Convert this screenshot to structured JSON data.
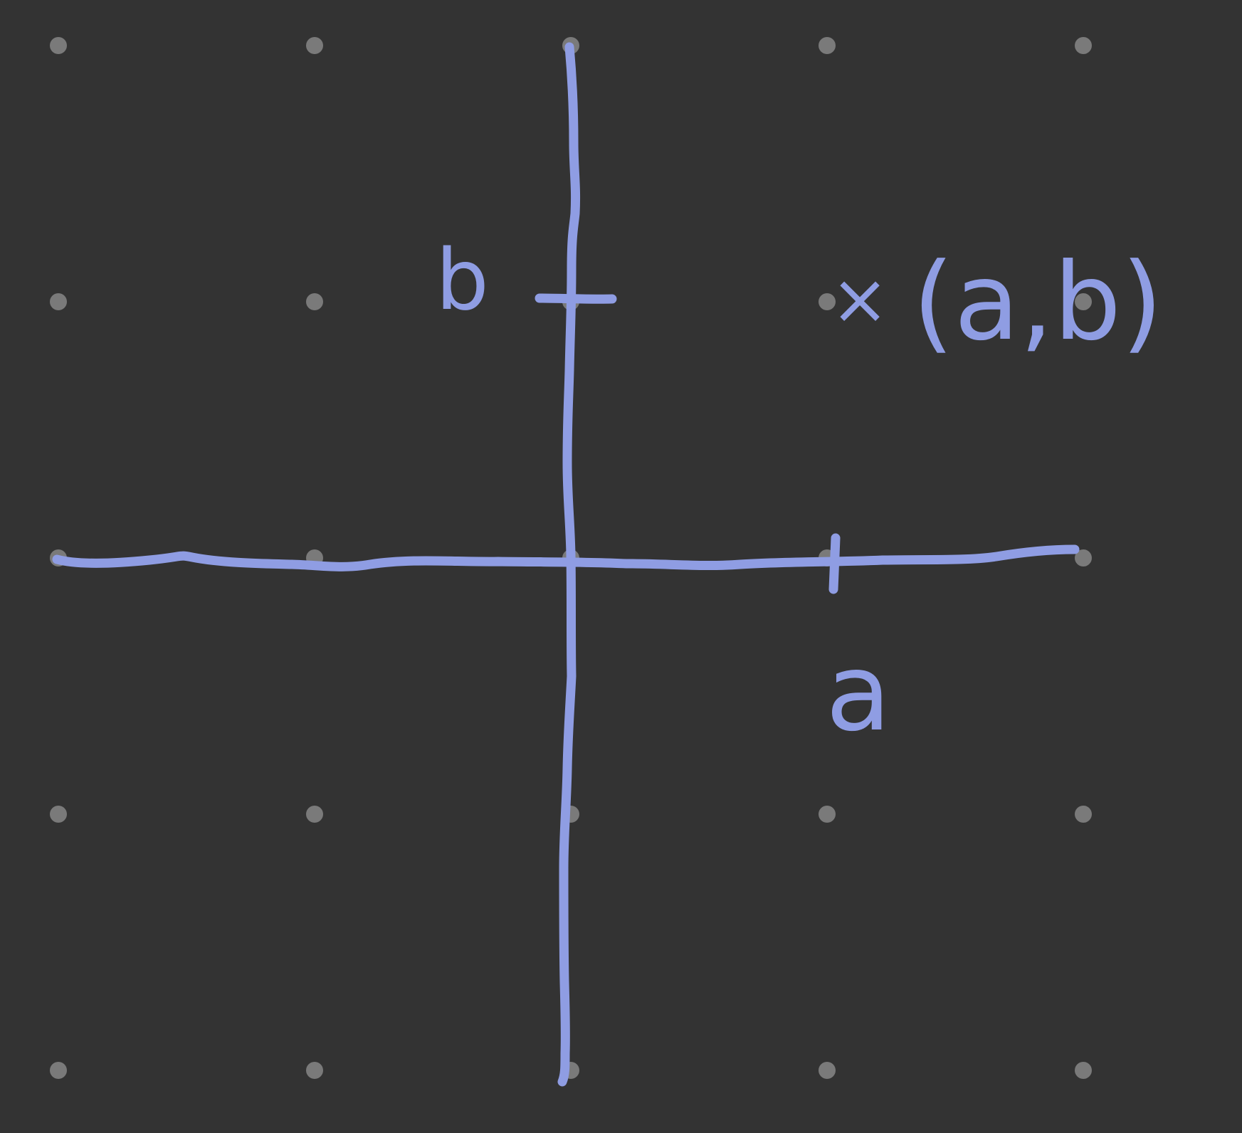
{
  "canvas": {
    "background": "#333333",
    "grid_dot_color": "#7a7a7a",
    "ink_color": "#8f9de3",
    "grid_columns": 5,
    "grid_rows": 5
  },
  "diagram": {
    "point_marker": "×",
    "point_label": "(a,b)",
    "x_tick_label": "a",
    "y_tick_label": "b"
  }
}
